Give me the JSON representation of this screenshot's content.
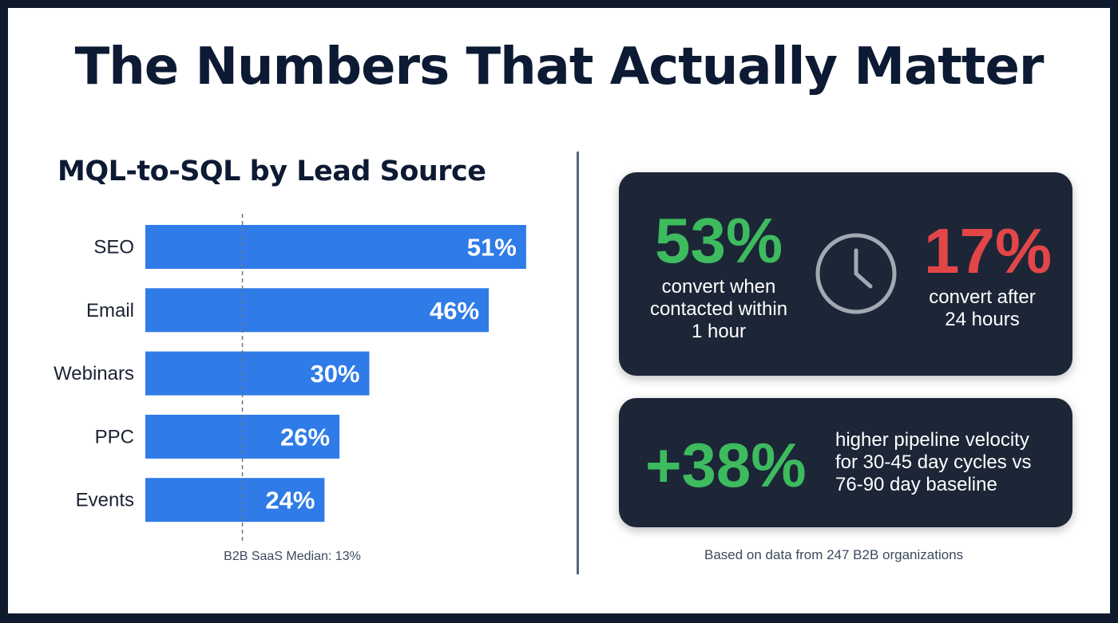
{
  "title": "The Numbers That Actually Matter",
  "colors": {
    "bar": "#2f7be8",
    "bar_label": "#ffffff",
    "green": "#3dbb5e",
    "red": "#e24649",
    "card_bg": "#1c2637"
  },
  "chart_data": {
    "type": "bar",
    "orientation": "horizontal",
    "title": "MQL-to-SQL by Lead Source",
    "categories": [
      "SEO",
      "Email",
      "Webinars",
      "PPC",
      "Events"
    ],
    "values": [
      51,
      46,
      30,
      26,
      24
    ],
    "value_labels": [
      "51%",
      "46%",
      "30%",
      "26%",
      "24%"
    ],
    "xlim": [
      0,
      55
    ],
    "reference_line": {
      "value": 13,
      "label": "B2B SaaS Median: 13%"
    },
    "xlabel": "",
    "ylabel": ""
  },
  "stats": {
    "fast_contact": {
      "value": "53%",
      "description": [
        "convert when",
        "contacted within",
        "1 hour"
      ]
    },
    "slow_contact": {
      "value": "17%",
      "description": [
        "convert after",
        "24 hours"
      ]
    },
    "clock_icon": "clock-icon",
    "velocity": {
      "value": "+38%",
      "description": [
        "higher pipeline velocity",
        "for 30-45 day cycles vs",
        "76-90 day baseline"
      ]
    }
  },
  "footnote": "Based on data from 247 B2B organizations"
}
